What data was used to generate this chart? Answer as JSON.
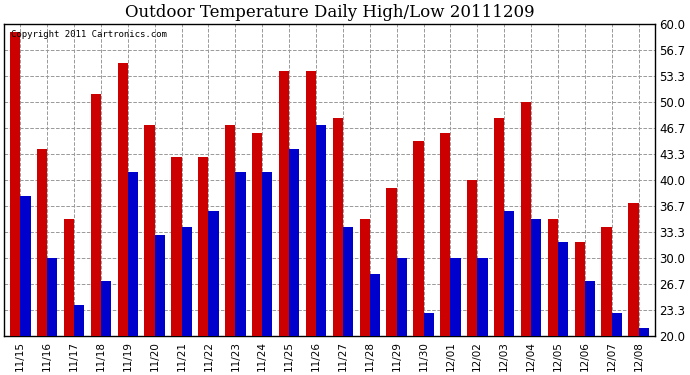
{
  "title": "Outdoor Temperature Daily High/Low 20111209",
  "copyright": "Copyright 2011 Cartronics.com",
  "background_color": "#ffffff",
  "bar_color_high": "#cc0000",
  "bar_color_low": "#0000cc",
  "grid_color": "#999999",
  "ylim": [
    20.0,
    60.0
  ],
  "yticks": [
    20.0,
    23.3,
    26.7,
    30.0,
    33.3,
    36.7,
    40.0,
    43.3,
    46.7,
    50.0,
    53.3,
    56.7,
    60.0
  ],
  "dates": [
    "11/15",
    "11/16",
    "11/17",
    "11/18",
    "11/19",
    "11/20",
    "11/21",
    "11/22",
    "11/23",
    "11/24",
    "11/25",
    "11/26",
    "11/27",
    "11/28",
    "11/29",
    "11/30",
    "12/01",
    "12/02",
    "12/03",
    "12/04",
    "12/05",
    "12/06",
    "12/07",
    "12/08"
  ],
  "highs": [
    59.0,
    44.0,
    35.0,
    51.0,
    55.0,
    47.0,
    43.0,
    43.0,
    47.0,
    46.0,
    54.0,
    54.0,
    48.0,
    35.0,
    39.0,
    45.0,
    46.0,
    40.0,
    48.0,
    50.0,
    35.0,
    32.0,
    34.0,
    37.0
  ],
  "lows": [
    38.0,
    30.0,
    24.0,
    27.0,
    41.0,
    33.0,
    34.0,
    36.0,
    41.0,
    41.0,
    44.0,
    47.0,
    34.0,
    28.0,
    30.0,
    23.0,
    30.0,
    30.0,
    36.0,
    35.0,
    32.0,
    27.0,
    23.0,
    21.0
  ],
  "figsize": [
    6.9,
    3.75
  ],
  "dpi": 100
}
